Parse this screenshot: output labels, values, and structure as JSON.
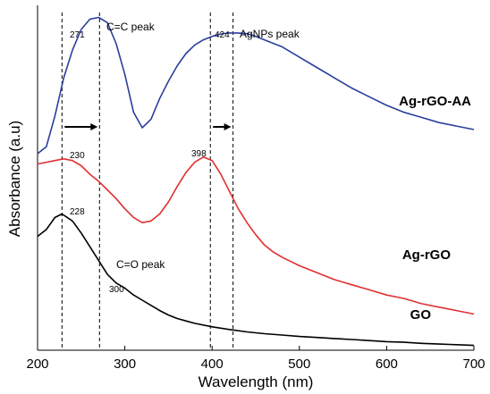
{
  "chart_data": {
    "type": "line",
    "title": "",
    "xlabel": "Wavelength (nm)",
    "ylabel": "Absorbance (a.u)",
    "xlim": [
      200,
      700
    ],
    "ylim": [
      0,
      10
    ],
    "xticks": [
      200,
      300,
      400,
      500,
      600,
      700
    ],
    "yticks_shown": false,
    "grid": false,
    "legend": "none",
    "series": [
      {
        "name": "Ag-rGO-AA",
        "color": "#2a3f9d",
        "x": [
          200,
          210,
          220,
          230,
          240,
          250,
          260,
          270,
          280,
          290,
          300,
          310,
          320,
          330,
          340,
          350,
          360,
          370,
          380,
          390,
          400,
          410,
          420,
          430,
          440,
          450,
          460,
          470,
          480,
          500,
          520,
          540,
          560,
          580,
          600,
          620,
          640,
          660,
          680,
          700
        ],
        "values": [
          5.7,
          5.9,
          6.8,
          7.9,
          8.7,
          9.3,
          9.6,
          9.65,
          9.5,
          8.9,
          8.0,
          6.9,
          6.45,
          6.7,
          7.3,
          7.8,
          8.25,
          8.6,
          8.85,
          9.0,
          9.1,
          9.17,
          9.2,
          9.2,
          9.18,
          9.1,
          9.0,
          8.9,
          8.8,
          8.5,
          8.2,
          7.9,
          7.6,
          7.35,
          7.1,
          6.9,
          6.75,
          6.6,
          6.5,
          6.4
        ]
      },
      {
        "name": "Ag-rGO",
        "color": "#e03030",
        "x": [
          200,
          210,
          220,
          230,
          240,
          250,
          260,
          270,
          280,
          290,
          300,
          310,
          320,
          330,
          340,
          350,
          360,
          370,
          380,
          390,
          400,
          410,
          420,
          430,
          440,
          450,
          460,
          470,
          480,
          500,
          520,
          540,
          560,
          580,
          600,
          620,
          640,
          660,
          680,
          700
        ],
        "values": [
          5.4,
          5.45,
          5.5,
          5.55,
          5.5,
          5.35,
          5.1,
          4.9,
          4.65,
          4.4,
          4.1,
          3.85,
          3.7,
          3.75,
          3.95,
          4.3,
          4.75,
          5.15,
          5.45,
          5.6,
          5.5,
          5.1,
          4.6,
          4.1,
          3.7,
          3.35,
          3.05,
          2.85,
          2.7,
          2.45,
          2.25,
          2.05,
          1.9,
          1.75,
          1.6,
          1.5,
          1.35,
          1.25,
          1.15,
          1.05
        ]
      },
      {
        "name": "GO",
        "color": "#000000",
        "x": [
          200,
          210,
          220,
          228,
          240,
          250,
          260,
          270,
          280,
          290,
          300,
          310,
          320,
          330,
          340,
          350,
          360,
          370,
          380,
          400,
          420,
          440,
          460,
          480,
          500,
          520,
          540,
          560,
          580,
          600,
          620,
          640,
          660,
          680,
          700
        ],
        "values": [
          3.3,
          3.5,
          3.85,
          3.95,
          3.75,
          3.4,
          3.0,
          2.6,
          2.2,
          1.95,
          1.8,
          1.6,
          1.45,
          1.3,
          1.15,
          1.02,
          0.92,
          0.85,
          0.78,
          0.68,
          0.6,
          0.53,
          0.48,
          0.44,
          0.4,
          0.37,
          0.34,
          0.31,
          0.28,
          0.25,
          0.23,
          0.2,
          0.18,
          0.16,
          0.14
        ]
      }
    ],
    "dashed_lines_x": [
      228,
      271,
      398,
      424
    ],
    "annotations": [
      {
        "text": "271",
        "x": 271
      },
      {
        "text": "C=C peak",
        "x": 271
      },
      {
        "text": "424",
        "x": 424
      },
      {
        "text": "AgNPs peak",
        "x": 424
      },
      {
        "text": "230",
        "x": 230
      },
      {
        "text": "398",
        "x": 398
      },
      {
        "text": "228",
        "x": 228
      },
      {
        "text": "C=O peak",
        "x": 300
      },
      {
        "text": "300",
        "x": 300
      }
    ],
    "series_labels": [
      "Ag-rGO-AA",
      "Ag-rGO",
      "GO"
    ]
  }
}
